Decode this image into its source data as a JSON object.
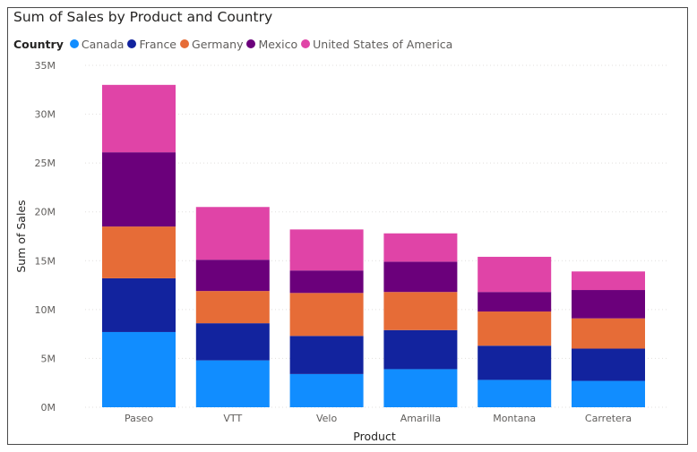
{
  "chart_data": {
    "type": "bar",
    "stacked": true,
    "title": "Sum of Sales by Product and Country",
    "legend_title": "Country",
    "legend_position": "top-left",
    "xlabel": "Product",
    "ylabel": "Sum of Sales",
    "ylim": [
      0,
      35000000
    ],
    "yticks": [
      0,
      5000000,
      10000000,
      15000000,
      20000000,
      25000000,
      30000000,
      35000000
    ],
    "ytick_labels": [
      "0M",
      "5M",
      "10M",
      "15M",
      "20M",
      "25M",
      "30M",
      "35M"
    ],
    "grid": true,
    "categories": [
      "Paseo",
      "VTT",
      "Velo",
      "Amarilla",
      "Montana",
      "Carretera"
    ],
    "series": [
      {
        "name": "Canada",
        "color": "#118DFF",
        "values": [
          7700000,
          4800000,
          3400000,
          3900000,
          2800000,
          2700000
        ]
      },
      {
        "name": "France",
        "color": "#12239E",
        "values": [
          5500000,
          3800000,
          3900000,
          4000000,
          3500000,
          3300000
        ]
      },
      {
        "name": "Germany",
        "color": "#E66C37",
        "values": [
          5300000,
          3300000,
          4400000,
          3900000,
          3500000,
          3100000
        ]
      },
      {
        "name": "Mexico",
        "color": "#6B007B",
        "values": [
          7600000,
          3200000,
          2300000,
          3100000,
          2000000,
          2900000
        ]
      },
      {
        "name": "United States of America",
        "color": "#E044A7",
        "values": [
          6900000,
          5400000,
          4200000,
          2900000,
          3600000,
          1900000
        ]
      }
    ]
  }
}
